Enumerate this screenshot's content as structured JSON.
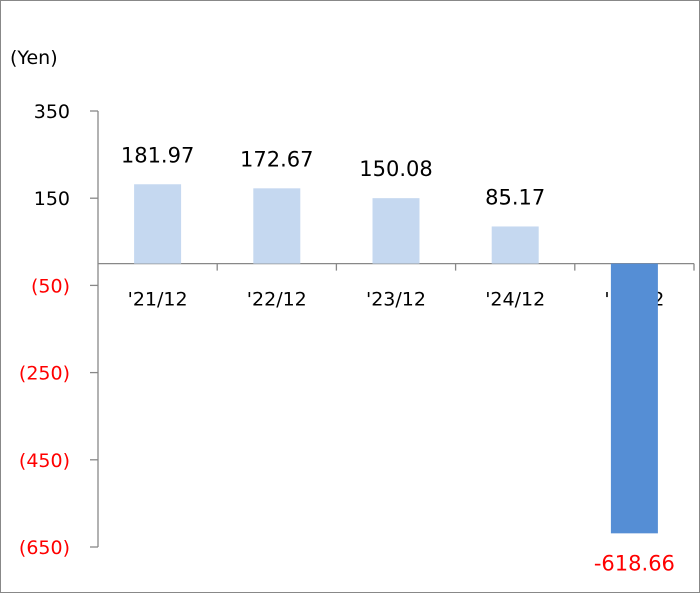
{
  "chart_data": {
    "type": "bar",
    "title": "",
    "unit_label": "(Yen)",
    "xlabel": "",
    "ylabel": "(Yen)",
    "categories": [
      "'21/12",
      "'22/12",
      "'23/12",
      "'24/12",
      "'25/12"
    ],
    "values": [
      181.97,
      172.67,
      150.08,
      85.17,
      -618.66
    ],
    "value_labels": [
      "181.97",
      "172.67",
      "150.08",
      "85.17",
      "-618.66"
    ],
    "ylim": [
      -650,
      350
    ],
    "yticks": [
      350,
      150,
      -50,
      -250,
      -450,
      -650
    ],
    "ytick_labels": [
      "350",
      "150",
      "(50)",
      "(250)",
      "(450)",
      "(650)"
    ],
    "grid": false,
    "legend": null,
    "colors": {
      "bar_default": "#c5d8f0",
      "bar_highlight": "#558ed5",
      "negative_text": "#ff0000",
      "positive_text": "#000000",
      "axis": "#888888"
    },
    "highlight_index": 4
  }
}
